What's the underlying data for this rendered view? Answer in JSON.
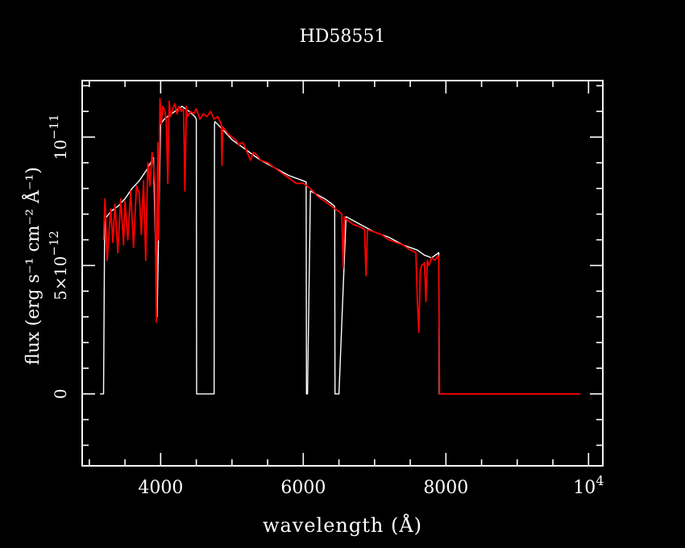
{
  "colors": {
    "background": "#000000",
    "axes": "#ffffff",
    "series_white": "#ffffff",
    "series_red": "#ff0000"
  },
  "chart_data": {
    "type": "line",
    "title": "HD58551",
    "xlabel": "wavelength (Å)",
    "ylabel": "flux (erg s⁻¹ cm⁻² Å⁻¹)",
    "xlim": [
      2900,
      10200
    ],
    "ylim": [
      -2.8e-12,
      1.22e-11
    ],
    "x_ticks": [
      {
        "value": 4000,
        "label": "4000"
      },
      {
        "value": 6000,
        "label": "6000"
      },
      {
        "value": 8000,
        "label": "8000"
      },
      {
        "value": 10000,
        "label": "10",
        "exponent": "4"
      }
    ],
    "y_ticks": [
      {
        "value": 0,
        "label": "0"
      },
      {
        "value": 5e-12,
        "label": "5×10",
        "exponent": "−12"
      },
      {
        "value": 1e-11,
        "label": "10",
        "exponent": "−11"
      }
    ],
    "legend": "none",
    "grid": false,
    "series": [
      {
        "color": "#ffffff",
        "x": [
          3150,
          3200,
          3215,
          3300,
          3400,
          3500,
          3600,
          3700,
          3800,
          3900,
          3950,
          4000,
          4050,
          4100,
          4200,
          4300,
          4400,
          4480,
          4500,
          4505,
          4750,
          4755,
          4760,
          4800,
          4900,
          5000,
          5200,
          5400,
          5600,
          5800,
          6000,
          6040,
          6045,
          6060,
          6100,
          6300,
          6400,
          6440,
          6445,
          6500,
          6600,
          6800,
          7000,
          7200,
          7400,
          7600,
          7700,
          7800,
          7900,
          7905,
          8200,
          8600,
          9000,
          9400,
          9880
        ],
        "y": [
          0,
          0,
          6.8e-12,
          7.1e-12,
          7.3e-12,
          7.6e-12,
          8e-12,
          8.3e-12,
          8.7e-12,
          9.2e-12,
          3e-12,
          1.05e-11,
          1.07e-11,
          1.08e-11,
          1.1e-11,
          1.12e-11,
          1.1e-11,
          1.08e-11,
          1.07e-11,
          0,
          0,
          1.05e-11,
          1.06e-11,
          1.05e-11,
          1.02e-11,
          9.9e-12,
          9.5e-12,
          9.1e-12,
          8.8e-12,
          8.5e-12,
          8.3e-12,
          8.25e-12,
          0,
          0,
          7.9e-12,
          7.6e-12,
          7.4e-12,
          7.3e-12,
          0,
          0,
          6.9e-12,
          6.6e-12,
          6.3e-12,
          6.1e-12,
          5.8e-12,
          5.6e-12,
          5.4e-12,
          5.3e-12,
          5.5e-12,
          0,
          0,
          0,
          0,
          0,
          0
        ]
      },
      {
        "color": "#ff0000",
        "x": [
          3200,
          3220,
          3250,
          3300,
          3330,
          3360,
          3400,
          3440,
          3480,
          3500,
          3540,
          3580,
          3620,
          3660,
          3700,
          3730,
          3760,
          3790,
          3820,
          3850,
          3880,
          3920,
          3940,
          3960,
          3970,
          3990,
          4010,
          4030,
          4060,
          4080,
          4100,
          4120,
          4140,
          4170,
          4200,
          4230,
          4260,
          4290,
          4320,
          4330,
          4340,
          4360,
          4380,
          4420,
          4460,
          4500,
          4550,
          4600,
          4650,
          4700,
          4750,
          4800,
          4850,
          4860,
          4870,
          4900,
          4950,
          5000,
          5050,
          5100,
          5150,
          5200,
          5260,
          5300,
          5350,
          5400,
          5500,
          5600,
          5700,
          5800,
          5900,
          6000,
          6100,
          6200,
          6300,
          6400,
          6500,
          6540,
          6560,
          6580,
          6600,
          6700,
          6800,
          6860,
          6880,
          6900,
          7000,
          7100,
          7200,
          7300,
          7400,
          7500,
          7580,
          7600,
          7620,
          7640,
          7660,
          7700,
          7720,
          7740,
          7760,
          7800,
          7850,
          7890,
          7900,
          7910,
          8200,
          8600,
          9000,
          9400,
          9880
        ],
        "y": [
          6e-12,
          7.6e-12,
          5.2e-12,
          7.2e-12,
          5.9e-12,
          7.4e-12,
          5.5e-12,
          7.6e-12,
          5.8e-12,
          7.5e-12,
          6e-12,
          7.9e-12,
          5.7e-12,
          8.1e-12,
          7.8e-12,
          6.2e-12,
          8.3e-12,
          5.2e-12,
          9e-12,
          8.1e-12,
          9.4e-12,
          8.2e-12,
          2.8e-12,
          9.8e-12,
          6e-12,
          1.15e-11,
          1.05e-11,
          1.12e-11,
          1.1e-11,
          1.06e-11,
          8.2e-12,
          1.14e-11,
          1.08e-11,
          1.11e-11,
          1.13e-11,
          1.09e-11,
          1.12e-11,
          1.1e-11,
          1.11e-11,
          9.8e-12,
          7.9e-12,
          1.12e-11,
          1.08e-11,
          1.1e-11,
          1.09e-11,
          1.11e-11,
          1.07e-11,
          1.09e-11,
          1.08e-11,
          1.1e-11,
          1.07e-11,
          1.08e-11,
          1.05e-11,
          8.9e-12,
          1.04e-11,
          1.03e-11,
          1.01e-11,
          1e-11,
          9.9e-12,
          9.7e-12,
          9.8e-12,
          9.5e-12,
          9.1e-12,
          9.4e-12,
          9.3e-12,
          9.1e-12,
          9e-12,
          8.8e-12,
          8.6e-12,
          8.4e-12,
          8.2e-12,
          8.2e-12,
          8e-12,
          7.7e-12,
          7.5e-12,
          7.3e-12,
          7.1e-12,
          7e-12,
          4.9e-12,
          6.9e-12,
          6.8e-12,
          6.6e-12,
          6.5e-12,
          6.4e-12,
          4.6e-12,
          6.4e-12,
          6.3e-12,
          6.2e-12,
          6e-12,
          5.9e-12,
          5.8e-12,
          5.6e-12,
          5.5e-12,
          3.6e-12,
          2.4e-12,
          4.8e-12,
          5e-12,
          5.1e-12,
          3.6e-12,
          5.2e-12,
          5e-12,
          5.3e-12,
          5.2e-12,
          5.4e-12,
          5.3e-12,
          0,
          0,
          0,
          0,
          0,
          0
        ]
      }
    ]
  }
}
